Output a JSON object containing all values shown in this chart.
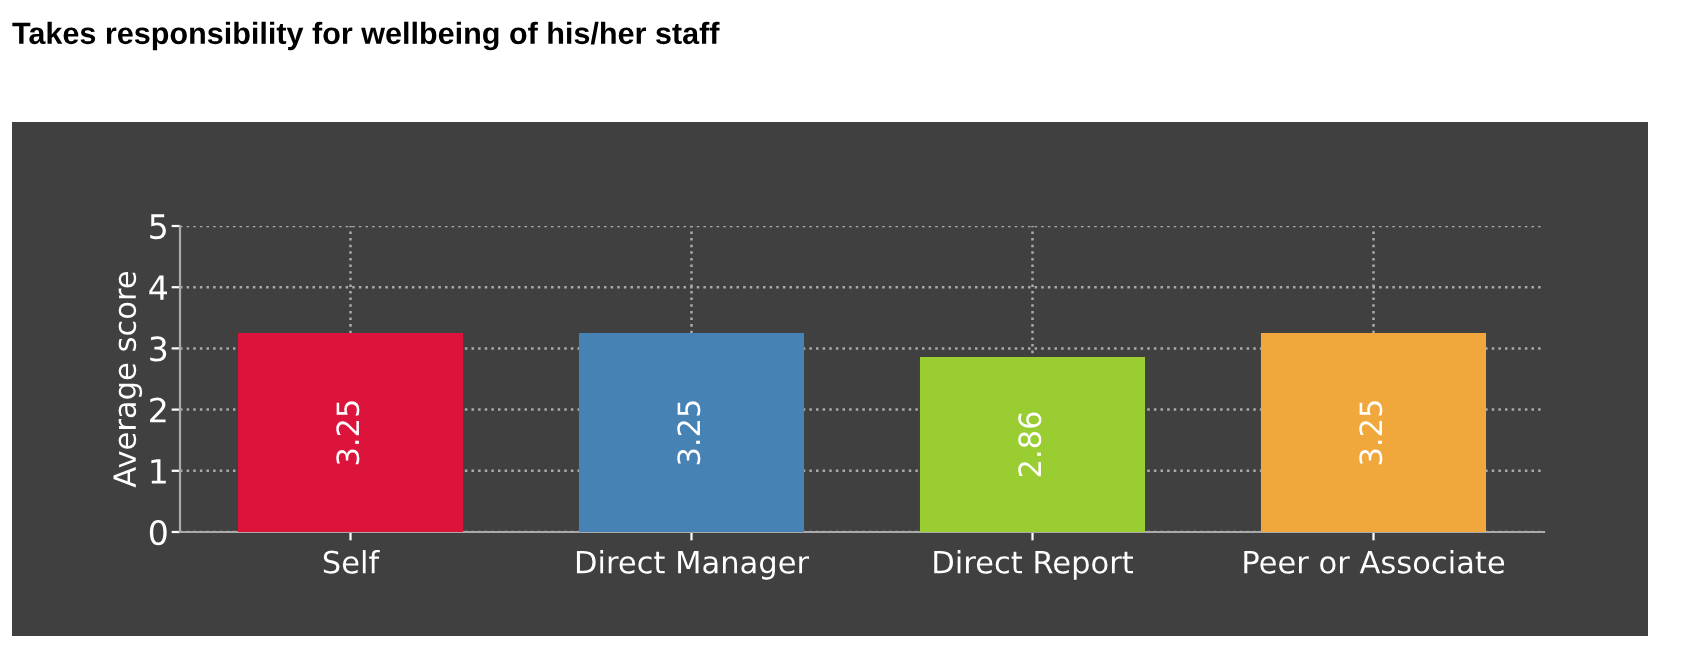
{
  "chart_data": {
    "type": "bar",
    "title": "Takes responsibility for wellbeing of his/her staff",
    "ylabel": "Average score",
    "categories": [
      "Self",
      "Direct Manager",
      "Direct Report",
      "Peer or Associate"
    ],
    "values": [
      3.25,
      3.25,
      2.86,
      3.25
    ],
    "colors": [
      "#dc143c",
      "#4682b4",
      "#9acd32",
      "#f0a83c"
    ],
    "ylim": [
      0,
      5
    ],
    "yticks": [
      0,
      1,
      2,
      3,
      4,
      5
    ],
    "grid": true,
    "data_labels": true
  }
}
